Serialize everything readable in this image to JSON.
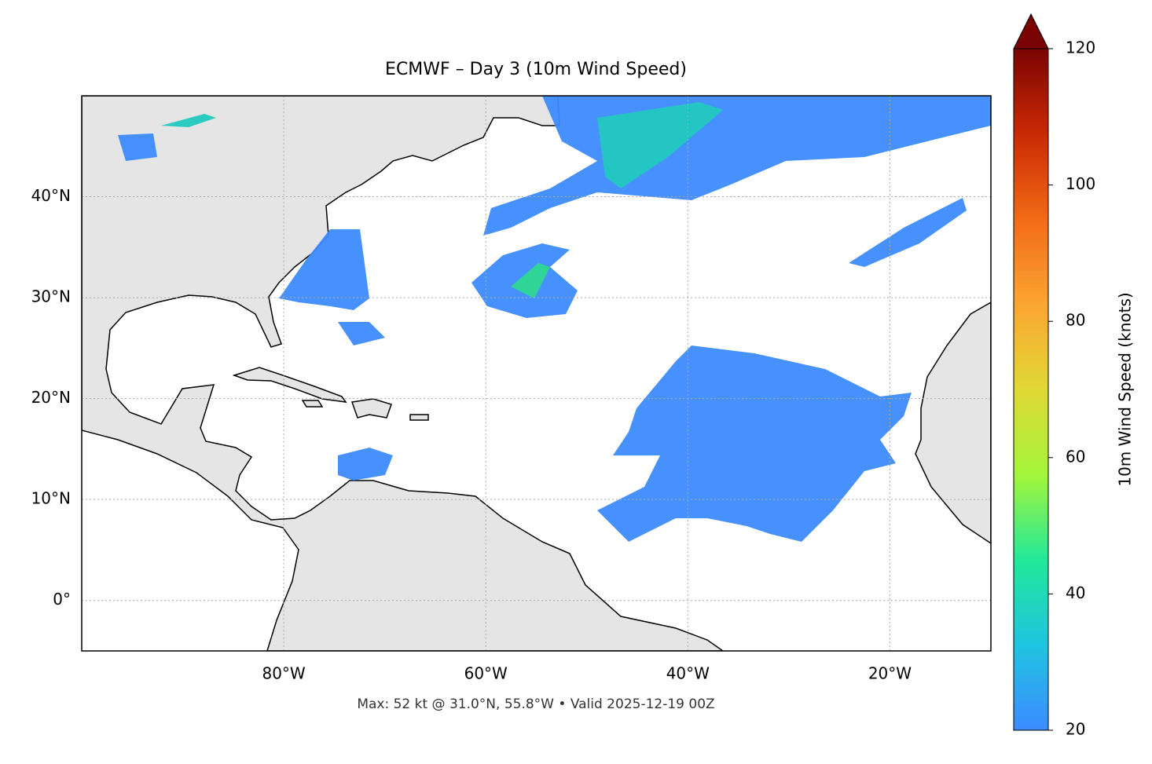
{
  "chart_data": {
    "type": "map",
    "title": "ECMWF – Day 3 (10m Wind Speed)",
    "annotation": "Max: 52 kt @ 31.0°N, 55.8°W • Valid 2025-12-19 00Z",
    "xlim": [
      -100,
      -10
    ],
    "ylim": [
      -5,
      50
    ],
    "xticks": [
      {
        "value": -80,
        "label": "80°W"
      },
      {
        "value": -60,
        "label": "60°W"
      },
      {
        "value": -40,
        "label": "40°W"
      },
      {
        "value": -20,
        "label": "20°W"
      }
    ],
    "yticks": [
      {
        "value": 0,
        "label": "0°"
      },
      {
        "value": 10,
        "label": "10°N"
      },
      {
        "value": 20,
        "label": "20°N"
      },
      {
        "value": 30,
        "label": "30°N"
      },
      {
        "value": 40,
        "label": "40°N"
      }
    ],
    "grid": true,
    "colorbar": {
      "label": "10m Wind Speed (knots)",
      "lim": [
        20,
        120
      ],
      "ticks": [
        20,
        40,
        60,
        80,
        100,
        120
      ],
      "colors": [
        "#3d8bff",
        "#1fc4e0",
        "#22e89a",
        "#a4f53a",
        "#e0d934",
        "#fba532",
        "#f26a16",
        "#c92a04",
        "#7a0403"
      ]
    }
  }
}
